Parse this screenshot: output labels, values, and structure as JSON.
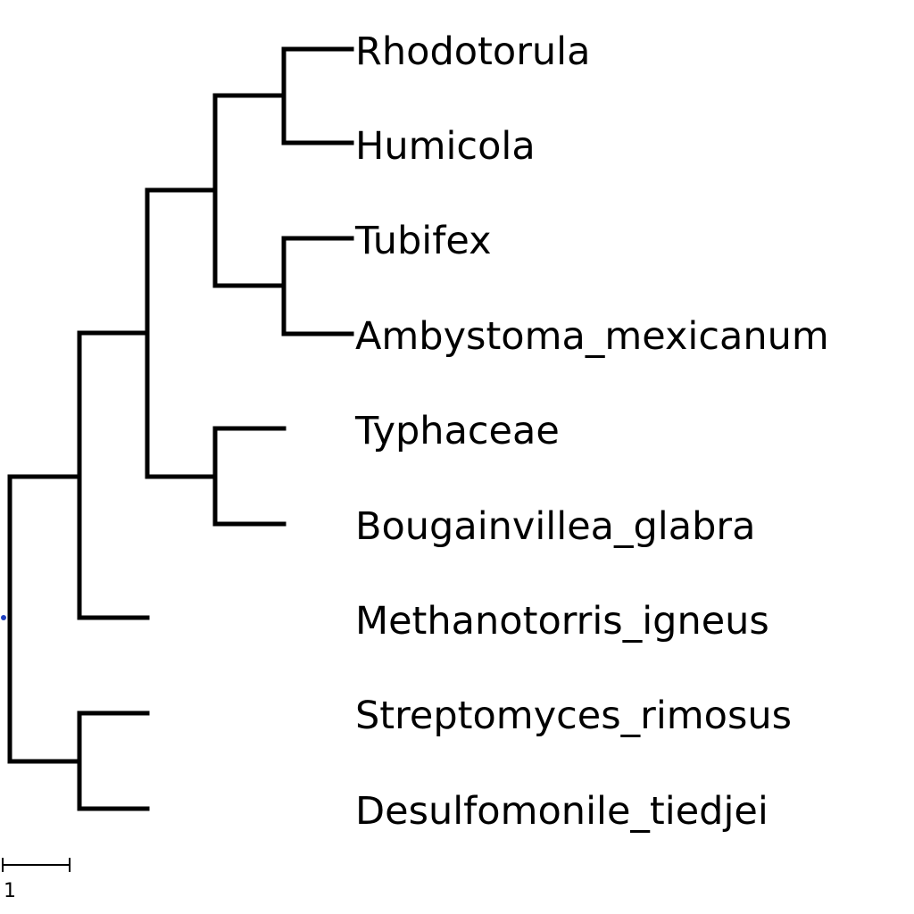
{
  "tree": {
    "leaves": [
      "Rhodotorula",
      "Humicola",
      "Tubifex",
      "Ambystoma_mexicanum",
      "Typhaceae",
      "Bougainvillea_glabra",
      "Methanotorris_igneus",
      "Streptomyces_rimosus",
      "Desulfomonile_tiedjei"
    ],
    "root_color": "#1f3fbf",
    "branch_color": "#000000"
  },
  "scale_bar": {
    "label": "1"
  }
}
